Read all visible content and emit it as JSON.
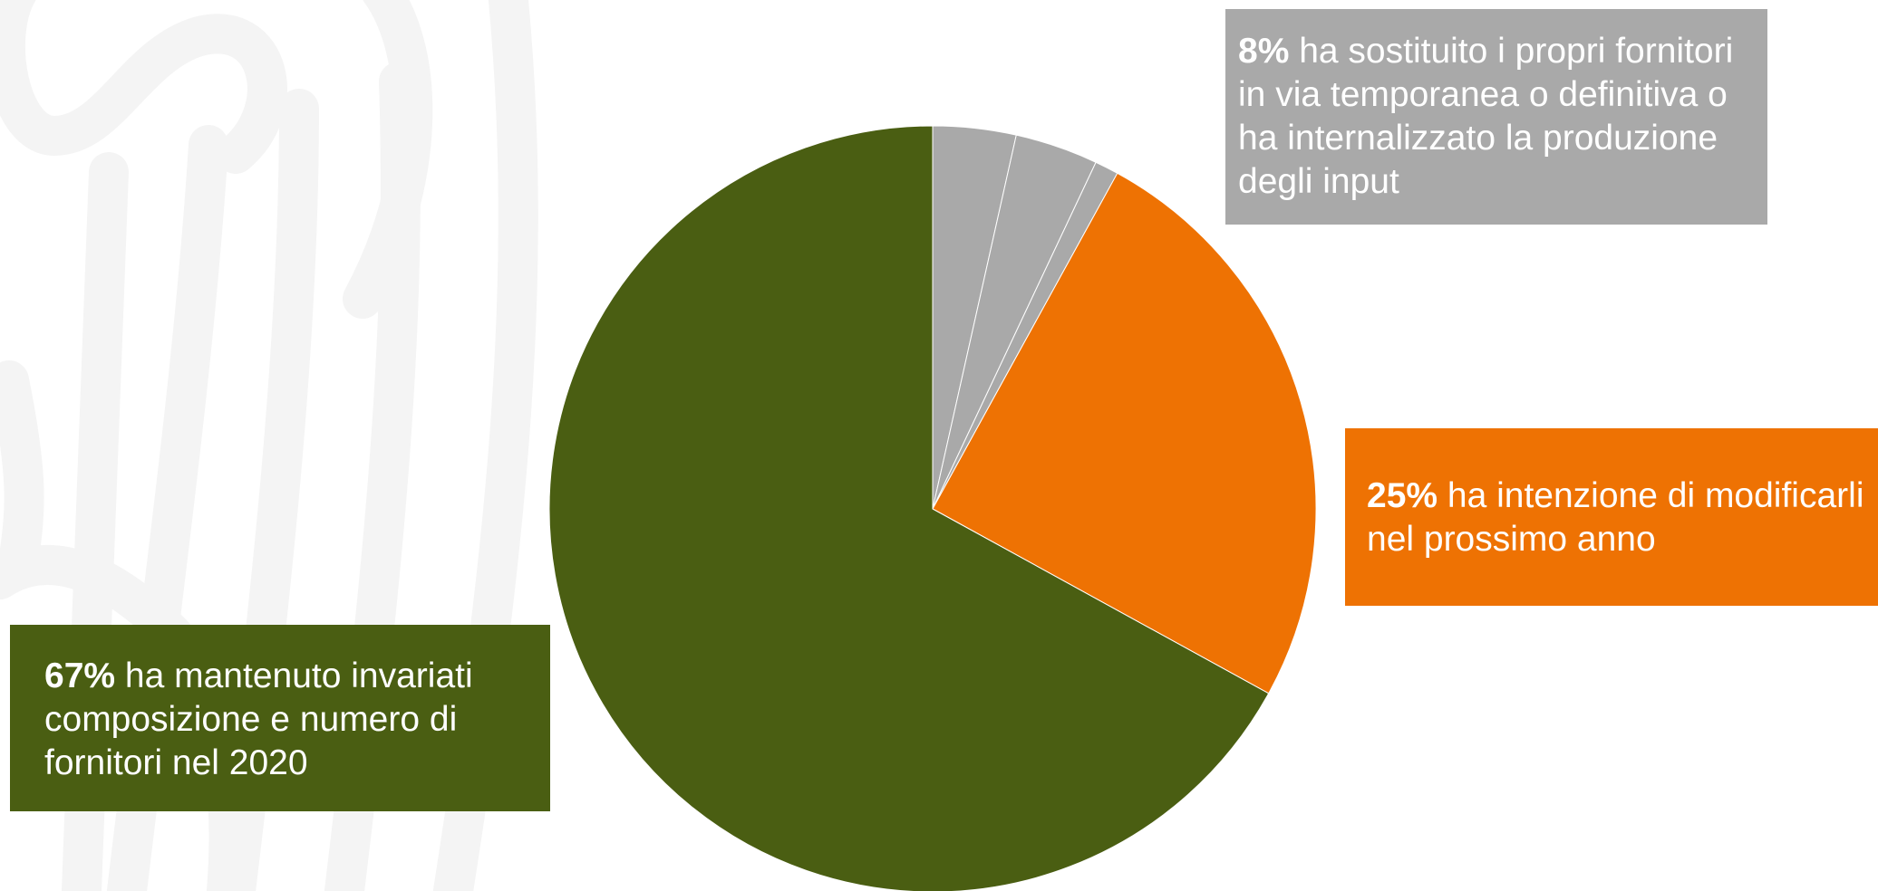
{
  "chart_data": {
    "type": "pie",
    "title": "",
    "start_angle_deg": 0,
    "direction": "clockwise",
    "slices": [
      {
        "value": 3.5,
        "color": "#A9A9A9"
      },
      {
        "value": 3.5,
        "color": "#A9A9A9"
      },
      {
        "value": 1.0,
        "color": "#A9A9A9"
      },
      {
        "value": 25,
        "color": "#EE7203"
      },
      {
        "value": 67,
        "color": "#4A5E12"
      }
    ]
  },
  "callouts": [
    {
      "pct": "8%",
      "text": " ha sostituito i propri fornitori in via temporanea o definitiva o ha internalizzato la produzione degli input",
      "color": "#A9A9A9"
    },
    {
      "pct": "25%",
      "text": " ha intenzione di modificarli nel prossimo anno",
      "color": "#EE7203"
    },
    {
      "pct": "67%",
      "text": " ha mantenuto invariati composizione e numero di fornitori nel 2020",
      "color": "#4A5E12"
    }
  ],
  "colors": {
    "watermark": "#F4F4F4",
    "slice_border": "#FFFFFF"
  }
}
